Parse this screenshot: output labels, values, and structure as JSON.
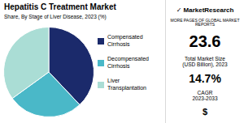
{
  "chart_data": {
    "type": "pie",
    "title": "Hepatitis C Treatment Market",
    "subtitle": "Share, By Stage of Liver Disease, 2023 (%)",
    "categories": [
      "Compensated\nCirrhosis",
      "Decompensated\nCirrhosis",
      "Liver\nTransplantation"
    ],
    "values": [
      0.38,
      0.27,
      0.35
    ],
    "colors": [
      "#1b2a6b",
      "#4ab8c8",
      "#aaddd5"
    ],
    "legend": "right",
    "annotations": [
      "✓ MarketResearch",
      "MORE PAGES OF GLOBAL MARKET REPORTS",
      "23.6",
      "Total Market Size\n(USD Billion), 2023",
      "14.7%",
      "CAGR\n2023-2033",
      "$"
    ]
  }
}
